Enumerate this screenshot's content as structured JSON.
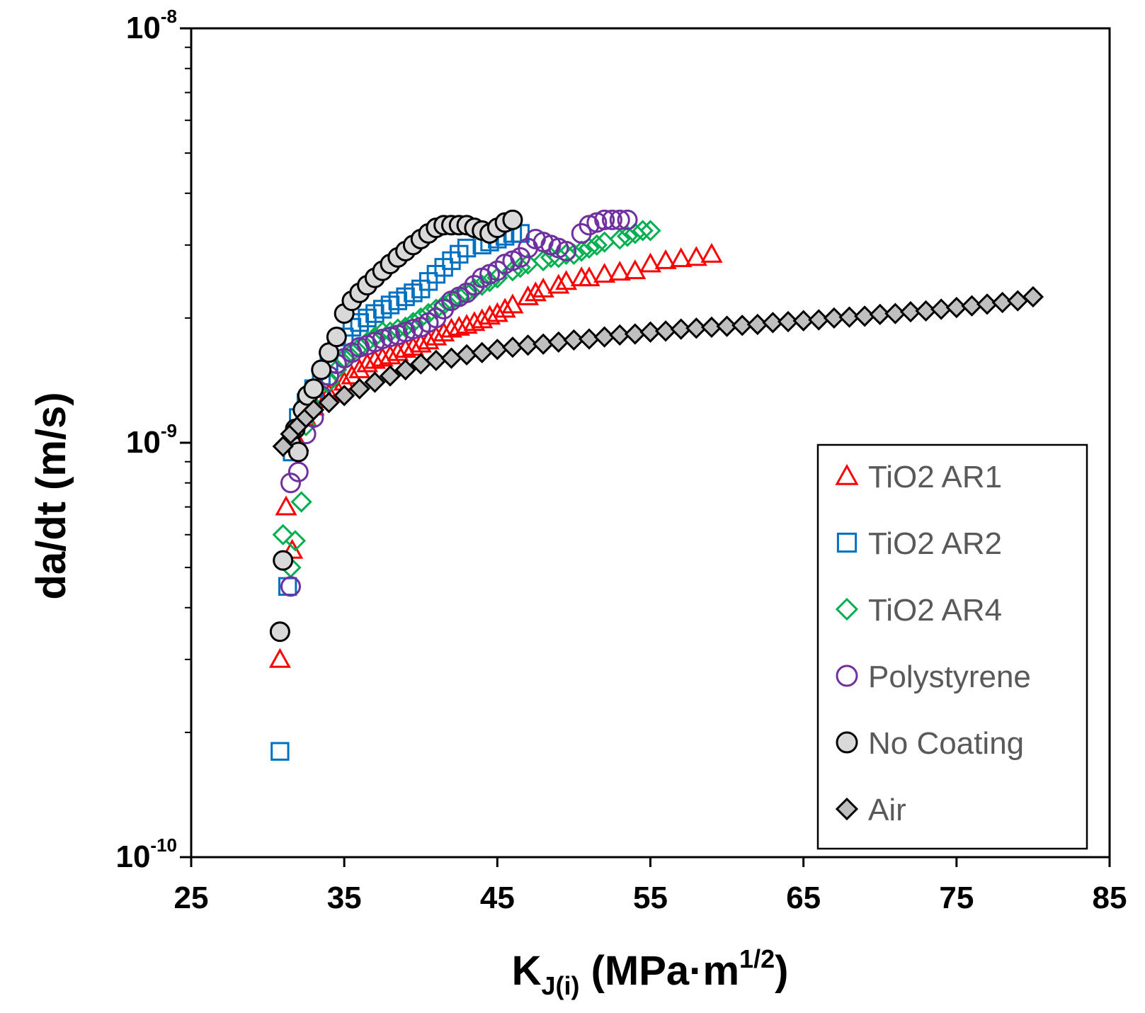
{
  "chart_data": {
    "type": "scatter",
    "xscale": "linear",
    "yscale": "log",
    "xlim": [
      25,
      85
    ],
    "ylim": [
      1e-10,
      1e-08
    ],
    "xticks": [
      "25",
      "35",
      "45",
      "55",
      "65",
      "75",
      "85"
    ],
    "yticks": [
      {
        "value": 1e-08,
        "base": "10",
        "exp": "-8"
      },
      {
        "value": 1e-09,
        "base": "10",
        "exp": "-9"
      },
      {
        "value": 1e-10,
        "base": "10",
        "exp": "-10"
      }
    ],
    "xlabel": {
      "main": "K",
      "sub": "J(i)",
      "units_pre": " (MPa·m",
      "sup": "1/2",
      "units_post": ")"
    },
    "ylabel": "da/dt (m/s)",
    "legend_position": "bottom-right",
    "series": [
      {
        "name": "TiO2 AR1",
        "marker": "triangle",
        "color": "#ff0000",
        "fill": "none",
        "points": [
          [
            30.8,
            3e-10
          ],
          [
            31.2,
            7e-10
          ],
          [
            31.6,
            5.5e-10
          ],
          [
            32.0,
            1e-09
          ],
          [
            32.5,
            1.15e-09
          ],
          [
            33.0,
            1.22e-09
          ],
          [
            33.5,
            1.27e-09
          ],
          [
            34.0,
            1.31e-09
          ],
          [
            34.5,
            1.35e-09
          ],
          [
            35.0,
            1.4e-09
          ],
          [
            35.5,
            1.45e-09
          ],
          [
            36.0,
            1.5e-09
          ],
          [
            36.5,
            1.55e-09
          ],
          [
            37.0,
            1.58e-09
          ],
          [
            37.5,
            1.6e-09
          ],
          [
            38.0,
            1.62e-09
          ],
          [
            38.5,
            1.65e-09
          ],
          [
            39.0,
            1.68e-09
          ],
          [
            39.5,
            1.7e-09
          ],
          [
            40.0,
            1.73e-09
          ],
          [
            40.5,
            1.76e-09
          ],
          [
            41.0,
            1.8e-09
          ],
          [
            41.5,
            1.84e-09
          ],
          [
            42.0,
            1.88e-09
          ],
          [
            42.5,
            1.9e-09
          ],
          [
            43.0,
            1.92e-09
          ],
          [
            43.5,
            1.95e-09
          ],
          [
            44.0,
            1.98e-09
          ],
          [
            44.5,
            2.02e-09
          ],
          [
            45.0,
            2.05e-09
          ],
          [
            45.5,
            2.1e-09
          ],
          [
            46.0,
            2.15e-09
          ],
          [
            47.0,
            2.25e-09
          ],
          [
            47.5,
            2.3e-09
          ],
          [
            48.0,
            2.35e-09
          ],
          [
            49.0,
            2.4e-09
          ],
          [
            49.5,
            2.45e-09
          ],
          [
            50.5,
            2.5e-09
          ],
          [
            51.0,
            2.5e-09
          ],
          [
            52.0,
            2.55e-09
          ],
          [
            53.0,
            2.58e-09
          ],
          [
            54.0,
            2.6e-09
          ],
          [
            55.0,
            2.7e-09
          ],
          [
            56.0,
            2.75e-09
          ],
          [
            57.0,
            2.78e-09
          ],
          [
            58.0,
            2.8e-09
          ],
          [
            59.0,
            2.85e-09
          ]
        ]
      },
      {
        "name": "TiO2 AR2",
        "marker": "square",
        "color": "#0070c0",
        "fill": "none",
        "points": [
          [
            30.8,
            1.8e-10
          ],
          [
            31.3,
            4.5e-10
          ],
          [
            31.6,
            9.5e-10
          ],
          [
            32.0,
            1.15e-09
          ],
          [
            32.5,
            1.25e-09
          ],
          [
            33.0,
            1.35e-09
          ],
          [
            33.5,
            1.45e-09
          ],
          [
            34.0,
            1.55e-09
          ],
          [
            34.5,
            1.7e-09
          ],
          [
            35.0,
            1.8e-09
          ],
          [
            35.5,
            1.9e-09
          ],
          [
            36.0,
            1.95e-09
          ],
          [
            36.5,
            2e-09
          ],
          [
            37.0,
            2.05e-09
          ],
          [
            37.5,
            2.1e-09
          ],
          [
            38.0,
            2.15e-09
          ],
          [
            38.5,
            2.2e-09
          ],
          [
            39.0,
            2.25e-09
          ],
          [
            39.5,
            2.3e-09
          ],
          [
            40.0,
            2.35e-09
          ],
          [
            40.5,
            2.45e-09
          ],
          [
            41.0,
            2.55e-09
          ],
          [
            41.5,
            2.65e-09
          ],
          [
            42.0,
            2.75e-09
          ],
          [
            42.5,
            2.85e-09
          ],
          [
            43.0,
            2.95e-09
          ],
          [
            44.0,
            3e-09
          ],
          [
            44.5,
            3.05e-09
          ],
          [
            45.0,
            3.1e-09
          ],
          [
            45.5,
            3.15e-09
          ],
          [
            46.0,
            3.2e-09
          ],
          [
            46.5,
            3.2e-09
          ]
        ]
      },
      {
        "name": "TiO2 AR4",
        "marker": "diamond",
        "color": "#00b050",
        "fill": "none",
        "points": [
          [
            31.0,
            6e-10
          ],
          [
            31.5,
            5e-10
          ],
          [
            31.8,
            5.8e-10
          ],
          [
            32.2,
            7.2e-10
          ],
          [
            32.5,
            1.1e-09
          ],
          [
            33.0,
            1.2e-09
          ],
          [
            33.5,
            1.3e-09
          ],
          [
            34.0,
            1.4e-09
          ],
          [
            34.5,
            1.5e-09
          ],
          [
            35.0,
            1.6e-09
          ],
          [
            35.5,
            1.65e-09
          ],
          [
            36.0,
            1.7e-09
          ],
          [
            36.5,
            1.75e-09
          ],
          [
            37.0,
            1.8e-09
          ],
          [
            37.5,
            1.85e-09
          ],
          [
            38.0,
            1.85e-09
          ],
          [
            38.5,
            1.88e-09
          ],
          [
            39.0,
            1.9e-09
          ],
          [
            39.5,
            1.95e-09
          ],
          [
            40.0,
            2e-09
          ],
          [
            40.5,
            2.05e-09
          ],
          [
            41.0,
            2.1e-09
          ],
          [
            41.5,
            2.15e-09
          ],
          [
            42.0,
            2.2e-09
          ],
          [
            42.5,
            2.25e-09
          ],
          [
            43.0,
            2.3e-09
          ],
          [
            43.5,
            2.35e-09
          ],
          [
            44.0,
            2.4e-09
          ],
          [
            44.5,
            2.45e-09
          ],
          [
            45.0,
            2.5e-09
          ],
          [
            46.0,
            2.6e-09
          ],
          [
            46.5,
            2.65e-09
          ],
          [
            47.0,
            2.7e-09
          ],
          [
            48.0,
            2.75e-09
          ],
          [
            48.5,
            2.8e-09
          ],
          [
            49.0,
            2.8e-09
          ],
          [
            49.5,
            2.85e-09
          ],
          [
            50.0,
            2.85e-09
          ],
          [
            50.5,
            2.9e-09
          ],
          [
            51.0,
            2.95e-09
          ],
          [
            51.5,
            3e-09
          ],
          [
            52.0,
            3.05e-09
          ],
          [
            53.0,
            3.1e-09
          ],
          [
            53.5,
            3.15e-09
          ],
          [
            54.0,
            3.2e-09
          ],
          [
            54.5,
            3.25e-09
          ],
          [
            55.0,
            3.25e-09
          ]
        ]
      },
      {
        "name": "Polystyrene",
        "marker": "circle",
        "color": "#7030a0",
        "fill": "none",
        "points": [
          [
            31.5,
            4.5e-10
          ],
          [
            31.5,
            8e-10
          ],
          [
            32.0,
            8.5e-10
          ],
          [
            32.5,
            1.05e-09
          ],
          [
            33.0,
            1.15e-09
          ],
          [
            33.5,
            1.3e-09
          ],
          [
            34.0,
            1.45e-09
          ],
          [
            34.5,
            1.55e-09
          ],
          [
            35.0,
            1.6e-09
          ],
          [
            35.5,
            1.65e-09
          ],
          [
            36.0,
            1.7e-09
          ],
          [
            36.5,
            1.72e-09
          ],
          [
            37.0,
            1.75e-09
          ],
          [
            37.5,
            1.78e-09
          ],
          [
            38.0,
            1.8e-09
          ],
          [
            38.5,
            1.82e-09
          ],
          [
            39.0,
            1.85e-09
          ],
          [
            39.5,
            1.88e-09
          ],
          [
            40.0,
            1.9e-09
          ],
          [
            40.5,
            1.95e-09
          ],
          [
            41.0,
            2e-09
          ],
          [
            41.5,
            2.1e-09
          ],
          [
            42.0,
            2.2e-09
          ],
          [
            42.5,
            2.25e-09
          ],
          [
            43.0,
            2.3e-09
          ],
          [
            43.5,
            2.4e-09
          ],
          [
            44.0,
            2.5e-09
          ],
          [
            44.5,
            2.55e-09
          ],
          [
            45.0,
            2.6e-09
          ],
          [
            45.5,
            2.7e-09
          ],
          [
            46.0,
            2.75e-09
          ],
          [
            46.5,
            2.8e-09
          ],
          [
            47.0,
            2.95e-09
          ],
          [
            47.5,
            3.1e-09
          ],
          [
            48.0,
            3.05e-09
          ],
          [
            48.5,
            3e-09
          ],
          [
            49.0,
            2.95e-09
          ],
          [
            49.5,
            2.9e-09
          ],
          [
            50.5,
            3.2e-09
          ],
          [
            51.0,
            3.35e-09
          ],
          [
            51.5,
            3.4e-09
          ],
          [
            52.0,
            3.45e-09
          ],
          [
            52.5,
            3.45e-09
          ],
          [
            53.0,
            3.45e-09
          ],
          [
            53.5,
            3.45e-09
          ]
        ]
      },
      {
        "name": "No Coating",
        "marker": "circle",
        "color": "#000000",
        "fill": "#d9d9d9",
        "points": [
          [
            30.8,
            3.5e-10
          ],
          [
            31.0,
            5.2e-10
          ],
          [
            31.5,
            1e-09
          ],
          [
            31.8,
            1.08e-09
          ],
          [
            32.0,
            9.5e-10
          ],
          [
            32.3,
            1.2e-09
          ],
          [
            32.6,
            1.3e-09
          ],
          [
            33.0,
            1.35e-09
          ],
          [
            33.5,
            1.5e-09
          ],
          [
            34.0,
            1.65e-09
          ],
          [
            34.5,
            1.8e-09
          ],
          [
            35.0,
            2.05e-09
          ],
          [
            35.5,
            2.2e-09
          ],
          [
            36.0,
            2.3e-09
          ],
          [
            36.5,
            2.4e-09
          ],
          [
            37.0,
            2.5e-09
          ],
          [
            37.5,
            2.6e-09
          ],
          [
            38.0,
            2.7e-09
          ],
          [
            38.5,
            2.8e-09
          ],
          [
            39.0,
            2.9e-09
          ],
          [
            39.5,
            3e-09
          ],
          [
            40.0,
            3.1e-09
          ],
          [
            40.5,
            3.2e-09
          ],
          [
            41.0,
            3.3e-09
          ],
          [
            41.5,
            3.35e-09
          ],
          [
            42.0,
            3.35e-09
          ],
          [
            42.5,
            3.35e-09
          ],
          [
            43.0,
            3.35e-09
          ],
          [
            43.5,
            3.3e-09
          ],
          [
            44.0,
            3.25e-09
          ],
          [
            44.5,
            3.2e-09
          ],
          [
            45.0,
            3.3e-09
          ],
          [
            45.5,
            3.4e-09
          ],
          [
            46.0,
            3.45e-09
          ]
        ]
      },
      {
        "name": "Air",
        "marker": "diamond",
        "color": "#000000",
        "fill": "#bfbfbf",
        "points": [
          [
            31.0,
            9.8e-10
          ],
          [
            31.5,
            1.05e-09
          ],
          [
            32.0,
            1.1e-09
          ],
          [
            32.5,
            1.15e-09
          ],
          [
            33.0,
            1.2e-09
          ],
          [
            34.0,
            1.25e-09
          ],
          [
            35.0,
            1.3e-09
          ],
          [
            36.0,
            1.35e-09
          ],
          [
            37.0,
            1.4e-09
          ],
          [
            38.0,
            1.45e-09
          ],
          [
            39.0,
            1.5e-09
          ],
          [
            40.0,
            1.55e-09
          ],
          [
            41.0,
            1.58e-09
          ],
          [
            42.0,
            1.6e-09
          ],
          [
            43.0,
            1.63e-09
          ],
          [
            44.0,
            1.65e-09
          ],
          [
            45.0,
            1.68e-09
          ],
          [
            46.0,
            1.7e-09
          ],
          [
            47.0,
            1.72e-09
          ],
          [
            48.0,
            1.73e-09
          ],
          [
            49.0,
            1.75e-09
          ],
          [
            50.0,
            1.77e-09
          ],
          [
            51.0,
            1.78e-09
          ],
          [
            52.0,
            1.8e-09
          ],
          [
            53.0,
            1.82e-09
          ],
          [
            54.0,
            1.83e-09
          ],
          [
            55.0,
            1.85e-09
          ],
          [
            56.0,
            1.86e-09
          ],
          [
            57.0,
            1.88e-09
          ],
          [
            58.0,
            1.89e-09
          ],
          [
            59.0,
            1.9e-09
          ],
          [
            60.0,
            1.91e-09
          ],
          [
            61.0,
            1.92e-09
          ],
          [
            62.0,
            1.93e-09
          ],
          [
            63.0,
            1.95e-09
          ],
          [
            64.0,
            1.96e-09
          ],
          [
            65.0,
            1.97e-09
          ],
          [
            66.0,
            1.98e-09
          ],
          [
            67.0,
            2e-09
          ],
          [
            68.0,
            2.01e-09
          ],
          [
            69.0,
            2.02e-09
          ],
          [
            70.0,
            2.04e-09
          ],
          [
            71.0,
            2.05e-09
          ],
          [
            72.0,
            2.07e-09
          ],
          [
            73.0,
            2.08e-09
          ],
          [
            74.0,
            2.1e-09
          ],
          [
            75.0,
            2.12e-09
          ],
          [
            76.0,
            2.14e-09
          ],
          [
            77.0,
            2.16e-09
          ],
          [
            78.0,
            2.18e-09
          ],
          [
            79.0,
            2.2e-09
          ],
          [
            80.0,
            2.25e-09
          ]
        ]
      }
    ]
  }
}
